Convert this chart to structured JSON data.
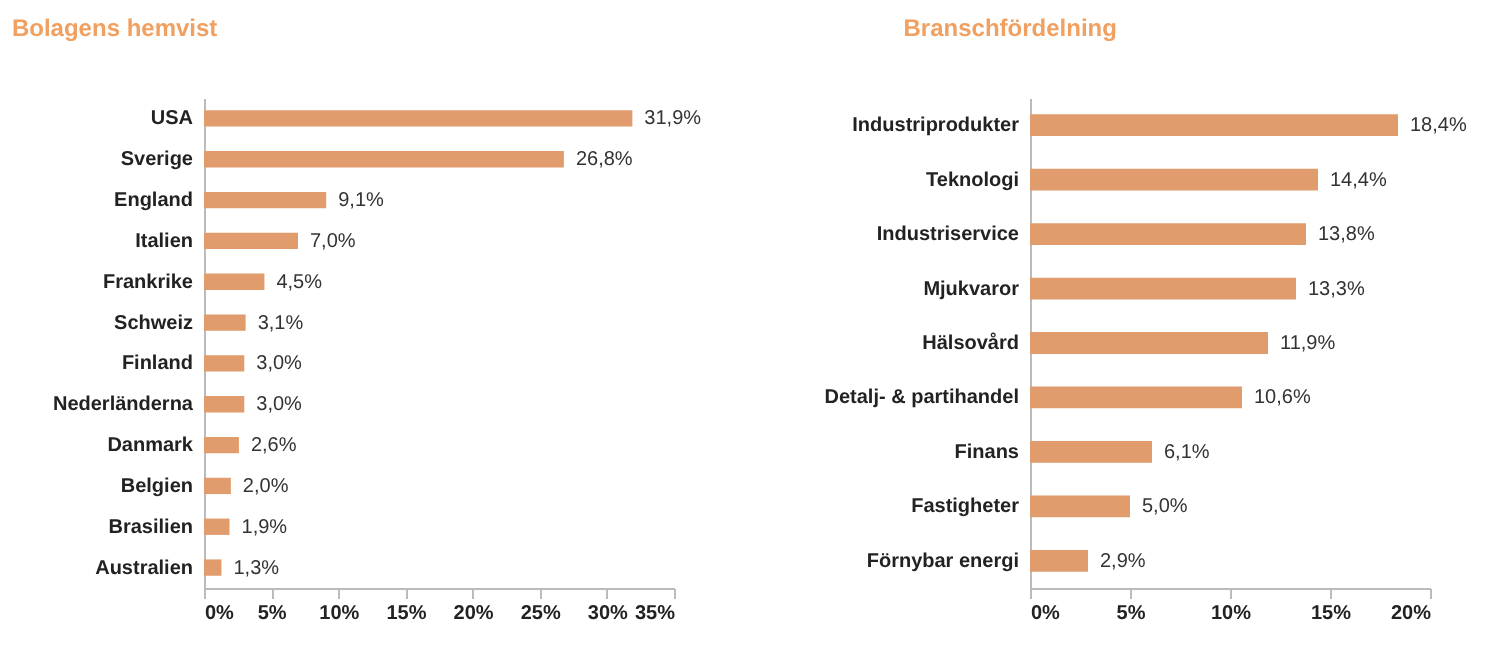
{
  "chart_data": [
    {
      "type": "bar",
      "orientation": "horizontal",
      "title": "Bolagens hemvist",
      "categories": [
        "USA",
        "Sverige",
        "England",
        "Italien",
        "Frankrike",
        "Schweiz",
        "Finland",
        "Nederländerna",
        "Danmark",
        "Belgien",
        "Brasilien",
        "Australien"
      ],
      "values": [
        31.9,
        26.8,
        9.1,
        7.0,
        4.5,
        3.1,
        3.0,
        3.0,
        2.6,
        2.0,
        1.9,
        1.3
      ],
      "value_labels": [
        "31,9%",
        "26,8%",
        "9,1%",
        "7,0%",
        "4,5%",
        "3,1%",
        "3,0%",
        "3,0%",
        "2,6%",
        "2,0%",
        "1,9%",
        "1,3%"
      ],
      "color": "#e09c6c",
      "xlim": [
        0,
        35
      ],
      "xticks": [
        {
          "value": 0,
          "label": "0%"
        },
        {
          "value": 5,
          "label": "5%"
        },
        {
          "value": 10,
          "label": "10%"
        },
        {
          "value": 15,
          "label": "15%"
        },
        {
          "value": 20,
          "label": "20%"
        },
        {
          "value": 25,
          "label": "25%"
        },
        {
          "value": 30,
          "label": "30%"
        },
        {
          "value": 35,
          "label": "35%"
        }
      ],
      "grid": false
    },
    {
      "type": "bar",
      "orientation": "horizontal",
      "title": "Branschfördelning",
      "categories": [
        "Industriprodukter",
        "Teknologi",
        "Industriservice",
        "Mjukvaror",
        "Hälsovård",
        "Detalj- & partihandel",
        "Finans",
        "Fastigheter",
        "Förnybar energi"
      ],
      "values": [
        18.4,
        14.4,
        13.8,
        13.3,
        11.9,
        10.6,
        6.1,
        5.0,
        2.9
      ],
      "value_labels": [
        "18,4%",
        "14,4%",
        "13,8%",
        "13,3%",
        "11,9%",
        "10,6%",
        "6,1%",
        "5,0%",
        "2,9%"
      ],
      "color": "#e09c6c",
      "xlim": [
        0,
        20
      ],
      "xticks": [
        {
          "value": 0,
          "label": "0%"
        },
        {
          "value": 5,
          "label": "5%"
        },
        {
          "value": 10,
          "label": "10%"
        },
        {
          "value": 15,
          "label": "15%"
        },
        {
          "value": 20,
          "label": "20%"
        }
      ],
      "grid": false
    }
  ]
}
